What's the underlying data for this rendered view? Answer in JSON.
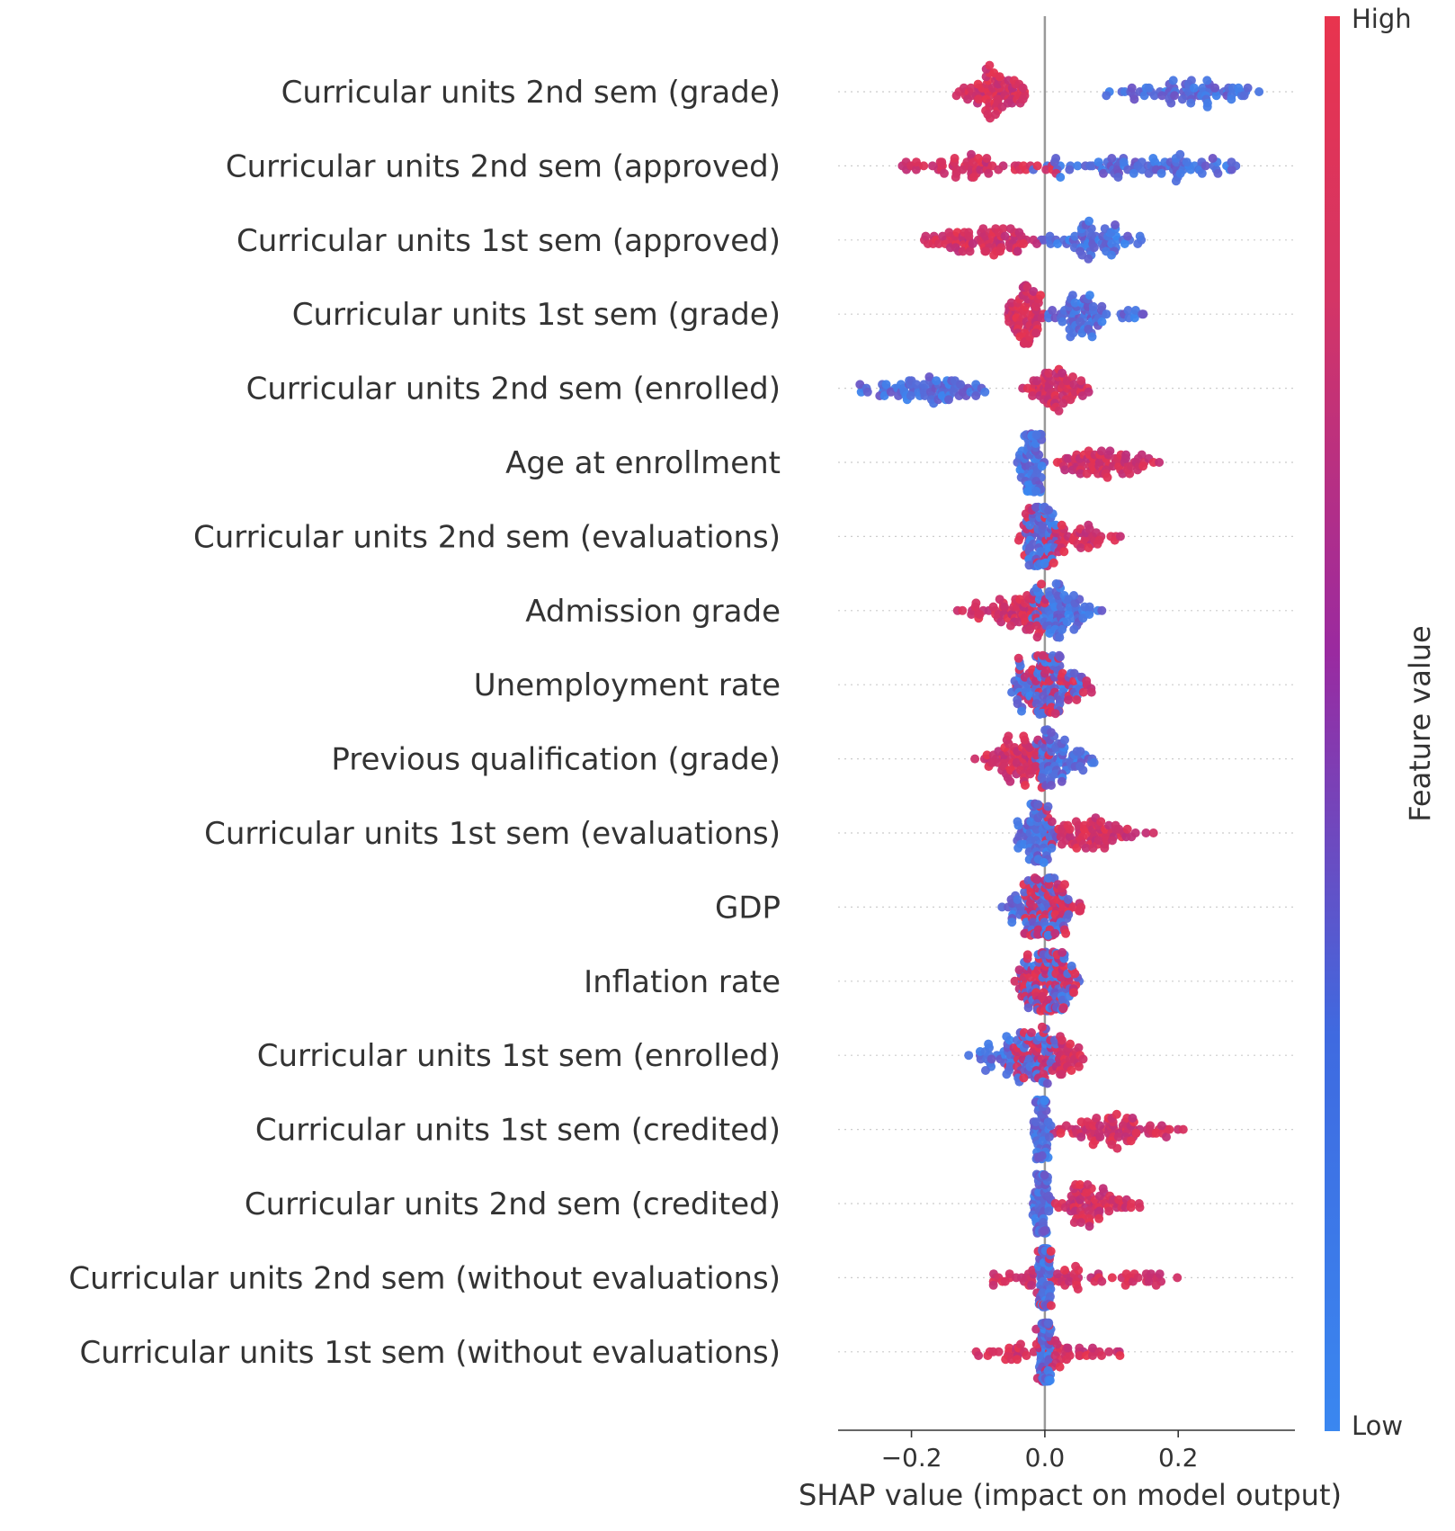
{
  "chart_data": {
    "type": "scatter",
    "subtype": "shap-beeswarm",
    "title": "",
    "xlabel": "SHAP value (impact on model output)",
    "ylabel": "",
    "xlim": [
      -0.31,
      0.375
    ],
    "xticks": [
      -0.2,
      0.0,
      0.2
    ],
    "xtick_labels": [
      "−0.2",
      "0.0",
      "0.2"
    ],
    "grid": false,
    "colorbar": {
      "label": "Feature value",
      "high_label": "High",
      "low_label": "Low",
      "high_color": "#e8344e",
      "mid_color": "#9a2aa0",
      "low_color": "#3a87f0"
    },
    "features": [
      {
        "name": "Curricular units 2nd sem (grade)",
        "high": {
          "range": [
            -0.14,
            -0.01
          ],
          "mode": -0.08
        },
        "low": {
          "range": [
            0.09,
            0.34
          ],
          "mode": 0.24
        }
      },
      {
        "name": "Curricular units 2nd sem (approved)",
        "high": {
          "range": [
            -0.24,
            0.03
          ],
          "mode": -0.1
        },
        "low": {
          "range": [
            -0.02,
            0.31
          ],
          "mode": 0.14
        }
      },
      {
        "name": "Curricular units 1st sem (approved)",
        "high": {
          "range": [
            -0.21,
            0.0
          ],
          "mode": -0.05
        },
        "low": {
          "range": [
            -0.02,
            0.16
          ],
          "mode": 0.08
        }
      },
      {
        "name": "Curricular units 1st sem (grade)",
        "high": {
          "range": [
            -0.06,
            0.0
          ],
          "mode": -0.025
        },
        "low": {
          "range": [
            0.0,
            0.15
          ],
          "mode": 0.04
        }
      },
      {
        "name": "Curricular units 2nd sem (enrolled)",
        "high": {
          "range": [
            -0.04,
            0.07
          ],
          "mode": 0.01
        },
        "low": {
          "range": [
            -0.29,
            -0.07
          ],
          "mode": -0.15
        }
      },
      {
        "name": "Age at enrollment",
        "high": {
          "range": [
            0.01,
            0.19
          ],
          "mode": 0.07
        },
        "low": {
          "range": [
            -0.05,
            0.0
          ],
          "mode": -0.01
        }
      },
      {
        "name": "Curricular units 2nd sem (evaluations)",
        "high": {
          "range": [
            -0.05,
            0.13
          ],
          "mode": -0.01
        },
        "low": {
          "range": [
            -0.03,
            0.02
          ],
          "mode": -0.01
        }
      },
      {
        "name": "Admission grade",
        "high": {
          "range": [
            -0.15,
            0.02
          ],
          "mode": -0.03
        },
        "low": {
          "range": [
            -0.02,
            0.09
          ],
          "mode": 0.01
        }
      },
      {
        "name": "Unemployment rate",
        "high": {
          "range": [
            -0.05,
            0.09
          ],
          "mode": 0.0
        },
        "low": {
          "range": [
            -0.06,
            0.07
          ],
          "mode": 0.0
        }
      },
      {
        "name": "Previous qualification (grade)",
        "high": {
          "range": [
            -0.12,
            0.02
          ],
          "mode": -0.02
        },
        "low": {
          "range": [
            -0.02,
            0.08
          ],
          "mode": 0.0
        }
      },
      {
        "name": "Curricular units 1st sem (evaluations)",
        "high": {
          "range": [
            -0.02,
            0.17
          ],
          "mode": 0.03
        },
        "low": {
          "range": [
            -0.05,
            0.02
          ],
          "mode": -0.01
        }
      },
      {
        "name": "GDP",
        "high": {
          "range": [
            -0.04,
            0.06
          ],
          "mode": 0.0
        },
        "low": {
          "range": [
            -0.07,
            0.05
          ],
          "mode": 0.0
        }
      },
      {
        "name": "Inflation rate",
        "high": {
          "range": [
            -0.06,
            0.06
          ],
          "mode": 0.0
        },
        "low": {
          "range": [
            -0.05,
            0.06
          ],
          "mode": 0.0
        }
      },
      {
        "name": "Curricular units 1st sem (enrolled)",
        "high": {
          "range": [
            -0.08,
            0.07
          ],
          "mode": 0.02
        },
        "low": {
          "range": [
            -0.13,
            0.02
          ],
          "mode": 0.0
        }
      },
      {
        "name": "Curricular units 1st sem (credited)",
        "high": {
          "range": [
            0.01,
            0.22
          ],
          "mode": 0.08
        },
        "low": {
          "range": [
            -0.02,
            0.01
          ],
          "mode": -0.005
        }
      },
      {
        "name": "Curricular units 2nd sem (credited)",
        "high": {
          "range": [
            0.01,
            0.16
          ],
          "mode": 0.05
        },
        "low": {
          "range": [
            -0.02,
            0.01
          ],
          "mode": -0.005
        }
      },
      {
        "name": "Curricular units 2nd sem (without evaluations)",
        "high": {
          "range": [
            -0.1,
            0.24
          ],
          "mode": 0.0
        },
        "low": {
          "range": [
            -0.01,
            0.01
          ],
          "mode": 0.0
        }
      },
      {
        "name": "Curricular units 1st sem (without evaluations)",
        "high": {
          "range": [
            -0.12,
            0.13
          ],
          "mode": 0.0
        },
        "low": {
          "range": [
            -0.01,
            0.01
          ],
          "mode": 0.0
        }
      }
    ]
  }
}
